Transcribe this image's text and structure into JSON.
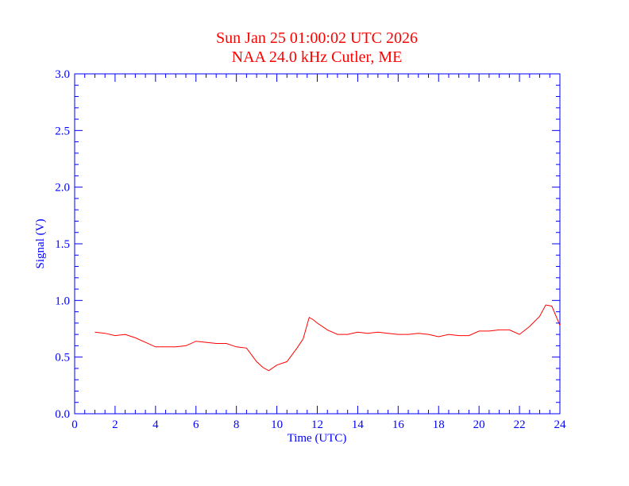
{
  "chart_data": {
    "type": "line",
    "title": "Sun Jan 25 01:00:02 UTC 2026",
    "subtitle": "NAA 24.0 kHz Cutler, ME",
    "xlabel": "Time (UTC)",
    "ylabel": "Signal (V)",
    "xlim": [
      0,
      24
    ],
    "ylim": [
      0,
      3.0
    ],
    "x_ticks": [
      "0",
      "2",
      "4",
      "6",
      "8",
      "10",
      "12",
      "14",
      "16",
      "18",
      "20",
      "22",
      "24"
    ],
    "y_ticks": [
      "0.0",
      "0.5",
      "1.0",
      "1.5",
      "2.0",
      "2.5",
      "3.0"
    ],
    "grid": false,
    "colors": {
      "axis": "#0000ff",
      "series": "#ff0000",
      "title": "#ff0000"
    },
    "series": [
      {
        "x": [
          1.0,
          1.5,
          2.0,
          2.5,
          3.0,
          3.5,
          4.0,
          4.5,
          5.0,
          5.5,
          6.0,
          6.5,
          7.0,
          7.5,
          8.0,
          8.5,
          9.0,
          9.3,
          9.6,
          10.0,
          10.5,
          11.0,
          11.3,
          11.6,
          11.8,
          12.0,
          12.5,
          13.0,
          13.5,
          14.0,
          14.5,
          15.0,
          15.5,
          16.0,
          16.5,
          17.0,
          17.5,
          18.0,
          18.5,
          19.0,
          19.5,
          20.0,
          20.5,
          21.0,
          21.5,
          22.0,
          22.5,
          23.0,
          23.3,
          23.6,
          24.0
        ],
        "y": [
          0.72,
          0.71,
          0.69,
          0.7,
          0.67,
          0.63,
          0.59,
          0.59,
          0.59,
          0.6,
          0.64,
          0.63,
          0.62,
          0.62,
          0.59,
          0.58,
          0.46,
          0.41,
          0.38,
          0.43,
          0.46,
          0.58,
          0.66,
          0.85,
          0.83,
          0.8,
          0.74,
          0.7,
          0.7,
          0.72,
          0.71,
          0.72,
          0.71,
          0.7,
          0.7,
          0.71,
          0.7,
          0.68,
          0.7,
          0.69,
          0.69,
          0.73,
          0.73,
          0.74,
          0.74,
          0.7,
          0.77,
          0.86,
          0.96,
          0.95,
          0.78
        ]
      }
    ]
  }
}
